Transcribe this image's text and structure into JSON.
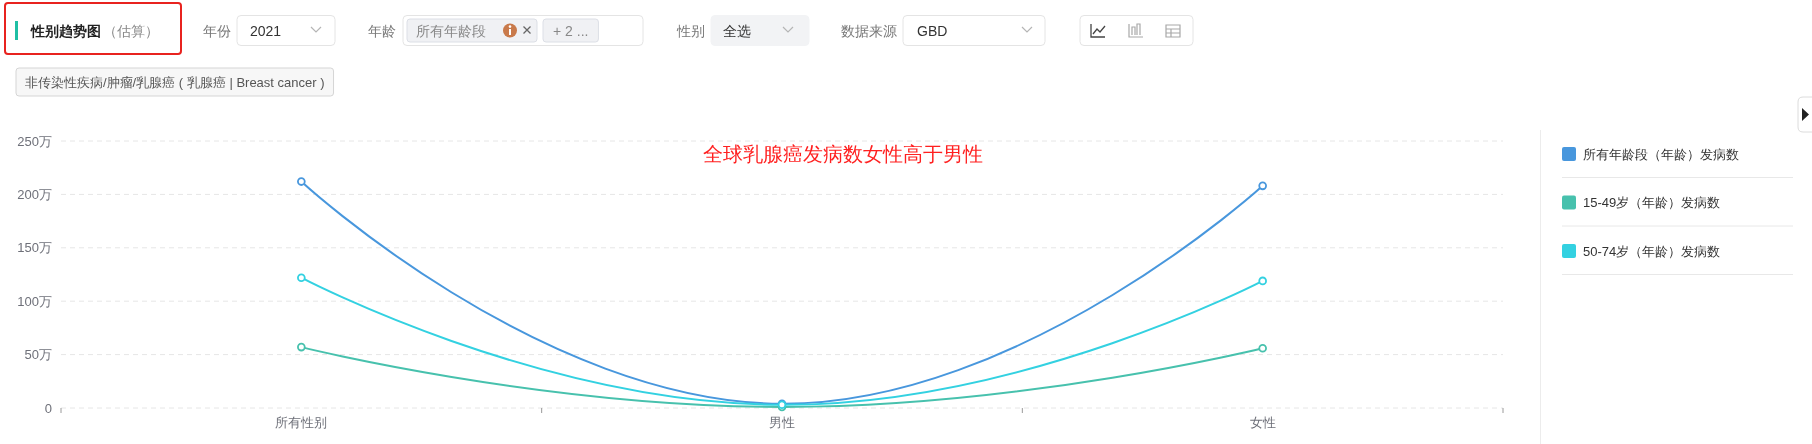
{
  "chart_data": {
    "type": "line",
    "title": "性别趋势图",
    "subtitle": "（估算）",
    "categories": [
      "所有性别",
      "男性",
      "女性"
    ],
    "series": [
      {
        "name": "所有年龄段（年龄）发病数",
        "color": "#4897dd",
        "values": [
          212,
          4,
          208
        ]
      },
      {
        "name": "15-49岁（年龄）发病数",
        "color": "#47c1ad",
        "values": [
          57,
          1,
          56
        ]
      },
      {
        "name": "50-74岁（年龄）发病数",
        "color": "#33d1e1",
        "values": [
          122,
          3,
          119
        ]
      }
    ],
    "ylim": [
      0,
      250
    ],
    "yticks": [
      0,
      {
        "value": 50,
        "label": "50万"
      },
      {
        "value": 100,
        "label": "100万"
      },
      {
        "value": 150,
        "label": "150万"
      },
      {
        "value": 200,
        "label": "200万"
      },
      {
        "value": 250,
        "label": "250万"
      }
    ],
    "grid": "y",
    "legend": "right",
    "marker": "circle",
    "line_style": "solid",
    "annotations": [
      "全球乳腺癌发病数女性高于男性",
      "年份",
      "2021",
      "年龄",
      "所有年龄段",
      "+ 2 ...",
      "性别",
      "全选",
      "数据来源",
      "GBD",
      "非传染性疾病/肿瘤/乳腺癌 ( 乳腺癌 | Breast cancer )"
    ]
  }
}
